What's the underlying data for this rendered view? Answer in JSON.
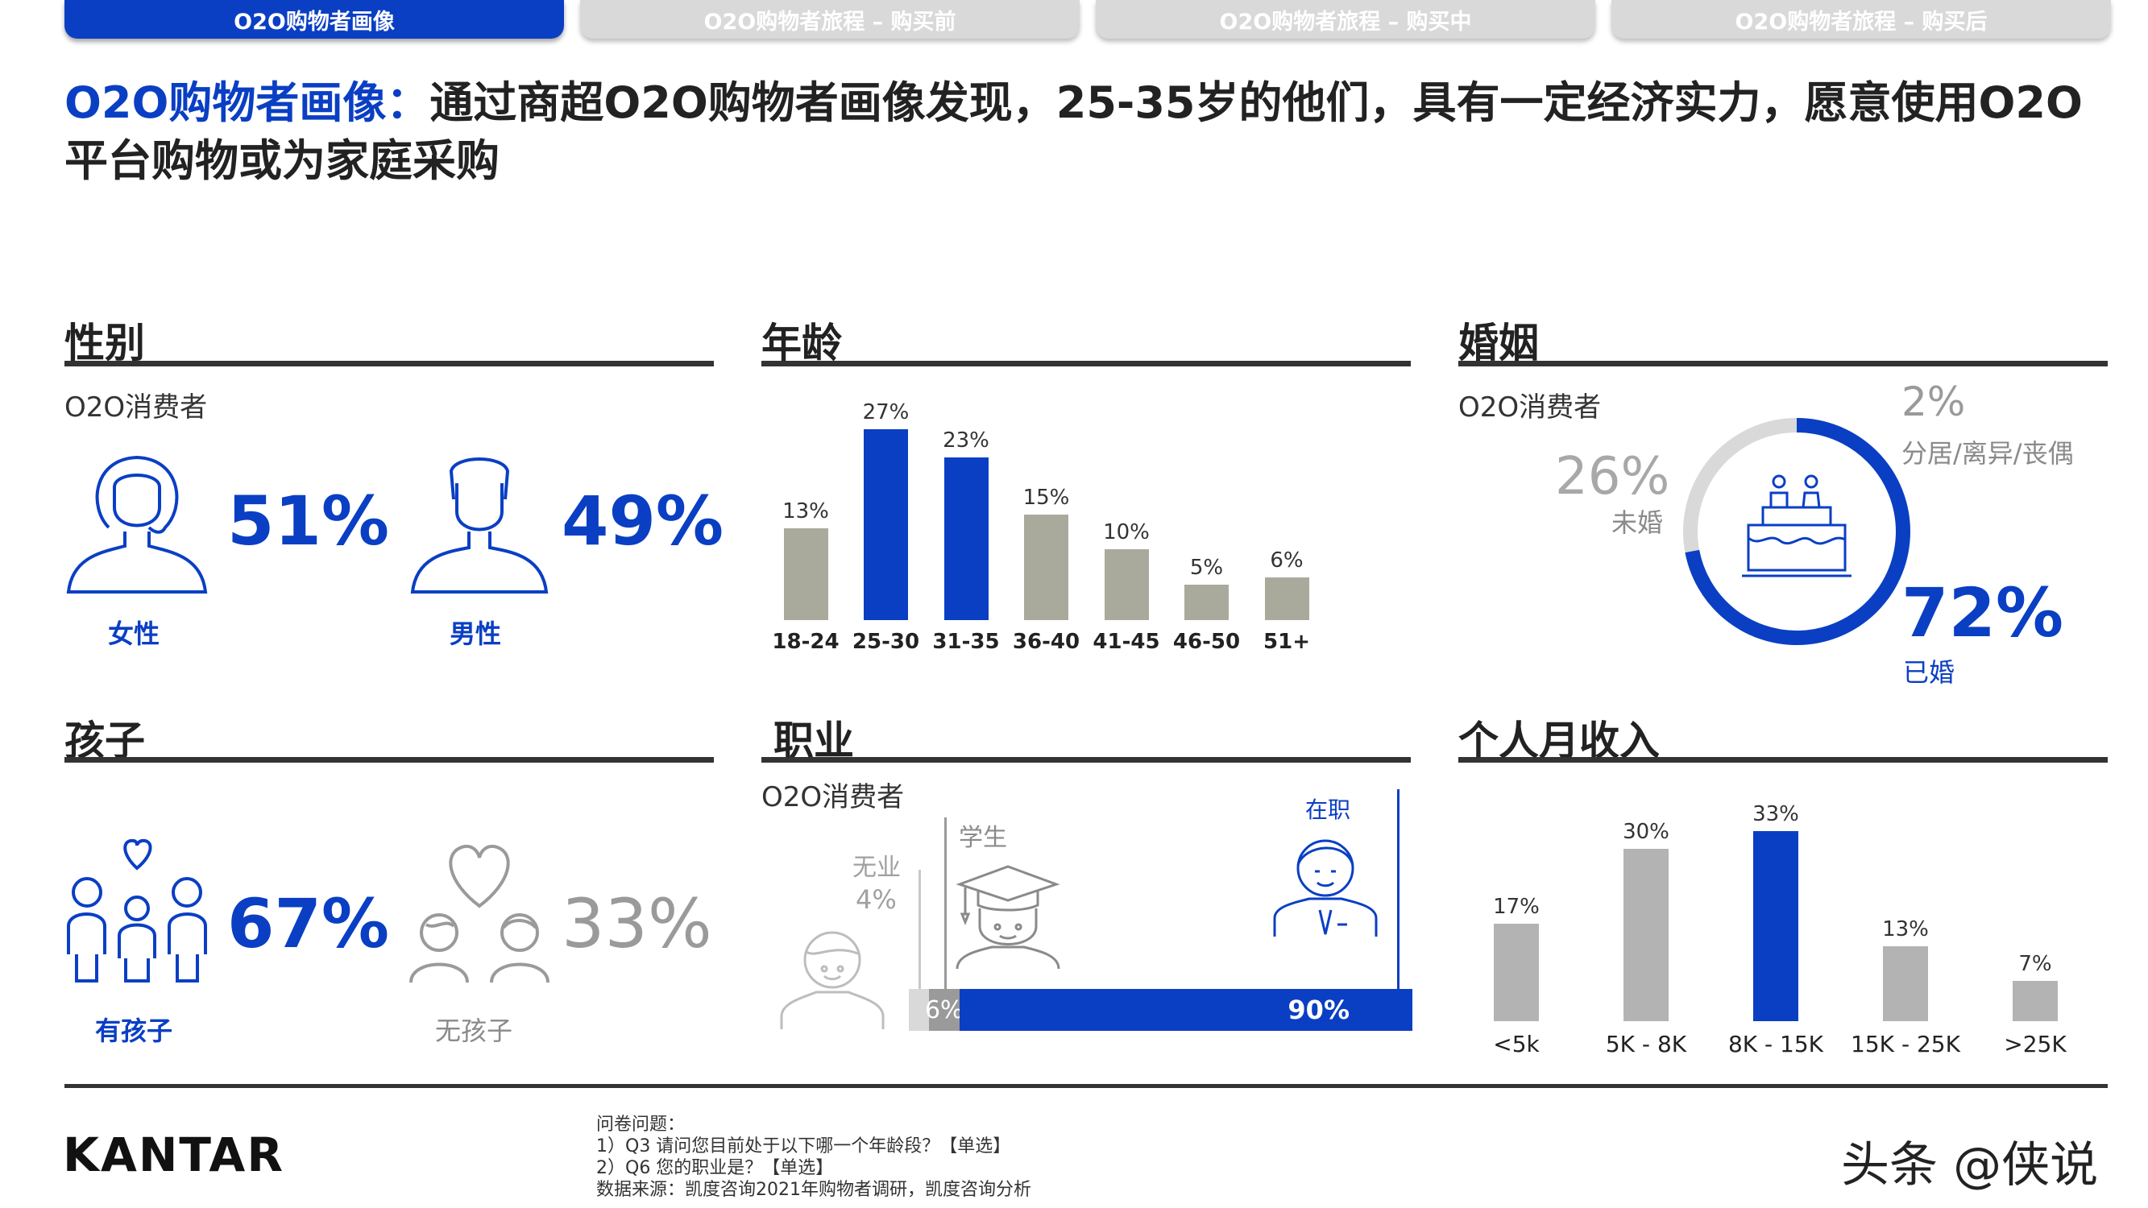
{
  "tabs": [
    {
      "label": "O2O购物者画像"
    },
    {
      "label": "O2O购物者旅程 – 购买前"
    },
    {
      "label": "O2O购物者旅程 – 购买中"
    },
    {
      "label": "O2O购物者旅程 – 购买后"
    }
  ],
  "headline": {
    "highlight": "O2O购物者画像：",
    "text": "通过商超O2O购物者画像发现，25-35岁的他们，具有一定经济实力，愿意使用O2O平台购物或为家庭采购"
  },
  "gender": {
    "title": "性别",
    "subtitle": "O2O消费者",
    "female_pct": "51%",
    "female_label": "女性",
    "male_pct": "49%",
    "male_label": "男性"
  },
  "age": {
    "title": "年龄"
  },
  "marriage": {
    "title": "婚姻",
    "subtitle": "O2O消费者",
    "separated_pct": "2%",
    "separated_label": "分居/离异/丧偶",
    "single_pct": "26%",
    "single_label": "未婚",
    "married_pct": "72%",
    "married_label": "已婚",
    "shares": {
      "married": 72,
      "separated": 2,
      "single": 26
    }
  },
  "children": {
    "title": "孩子",
    "with_pct": "67%",
    "with_label": "有孩子",
    "without_pct": "33%",
    "without_label": "无孩子"
  },
  "occupation": {
    "title": "职业",
    "subtitle": "O2O消费者",
    "unemployed_label": "无业",
    "unemployed_pct": "4%",
    "student_label": "学生",
    "student_pct": "6%",
    "employed_label": "在职",
    "employed_pct": "90%",
    "shares": {
      "unemployed": 4,
      "student": 6,
      "employed": 90
    }
  },
  "income": {
    "title": "个人月收入"
  },
  "chart_data": [
    {
      "type": "bar",
      "categories": [
        "18-24",
        "25-30",
        "31-35",
        "36-40",
        "41-45",
        "46-50",
        "51+"
      ],
      "values": [
        13,
        27,
        23,
        15,
        10,
        5,
        6
      ],
      "labels": [
        "13%",
        "27%",
        "23%",
        "15%",
        "10%",
        "5%",
        "6%"
      ],
      "highlight": [
        false,
        true,
        true,
        false,
        false,
        false,
        false
      ],
      "ylim": [
        0,
        30
      ]
    },
    {
      "type": "bar",
      "categories": [
        "<5k",
        "5K - 8K",
        "8K - 15K",
        "15K - 25K",
        ">25K"
      ],
      "values": [
        17,
        30,
        33,
        13,
        7
      ],
      "labels": [
        "17%",
        "30%",
        "33%",
        "13%",
        "7%"
      ],
      "highlight": [
        false,
        false,
        true,
        false,
        false
      ],
      "ylim": [
        0,
        35
      ]
    }
  ],
  "colors": {
    "accent": "#0a3fc4",
    "grey_bar": "#a9aa9c",
    "grey_income": "#b3b3b3",
    "ring_grey": "#d9d9d9"
  },
  "footer": {
    "logo": "KANTAR",
    "q_title": "问卷问题：",
    "q1": "1）Q3 请问您目前处于以下哪一个年龄段？【单选】",
    "q2": "2）Q6 您的职业是？【单选】",
    "source": "数据来源：凯度咨询2021年购物者调研，凯度咨询分析",
    "watermark": "头条 @侠说"
  }
}
